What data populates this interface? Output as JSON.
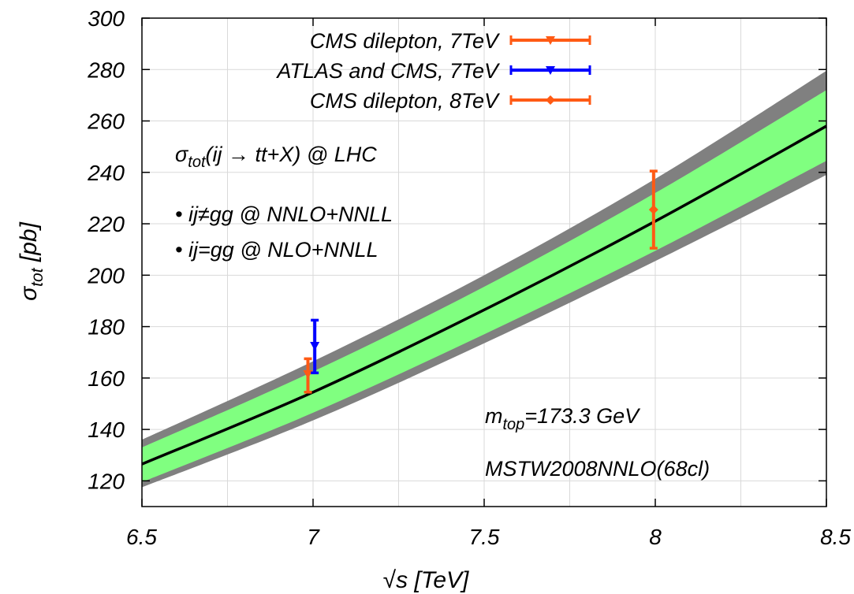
{
  "chart_data": {
    "type": "line",
    "xlabel": "√s [TeV]",
    "ylabel": "σtot [pb]",
    "xlim": [
      6.5,
      8.5
    ],
    "ylim": [
      110,
      300
    ],
    "xticks": [
      "6.5",
      "7",
      "7.5",
      "8",
      "8.5"
    ],
    "xtick_values": [
      6.5,
      7,
      7.5,
      8,
      8.5
    ],
    "yticks": [
      "120",
      "140",
      "160",
      "180",
      "200",
      "220",
      "240",
      "260",
      "280",
      "300"
    ],
    "ytick_values": [
      120,
      140,
      160,
      180,
      200,
      220,
      240,
      260,
      280,
      300
    ],
    "grid": true,
    "colors": {
      "outer_band": "#808080",
      "inner_band": "#80ff80",
      "central_line": "#000000",
      "cms_7tev": "#ff5a14",
      "atlas_cms_7tev": "#0000ff",
      "cms_8tev": "#ff5a14"
    },
    "theory": {
      "x": [
        6.5,
        7.0,
        7.5,
        8.0,
        8.5
      ],
      "central": [
        126.5,
        154.5,
        186.5,
        221.0,
        258.0
      ],
      "inner_lo": [
        119.5,
        146.5,
        177.0,
        209.5,
        244.5
      ],
      "inner_hi": [
        133.0,
        162.5,
        195.5,
        232.0,
        272.0
      ],
      "outer_lo": [
        117.5,
        143.5,
        173.5,
        205.5,
        239.0
      ],
      "outer_hi": [
        136.0,
        166.5,
        200.0,
        237.5,
        279.5
      ]
    },
    "series": [
      {
        "name": "CMS dilepton, 7TeV",
        "marker": "triangle-down",
        "x": 6.985,
        "y": 161.5,
        "ylo": 154.5,
        "yhi": 167.5
      },
      {
        "name": "ATLAS and CMS, 7TeV",
        "marker": "triangle-down",
        "x": 7.005,
        "y": 172.5,
        "ylo": 162.0,
        "yhi": 182.5
      },
      {
        "name": "CMS dilepton, 8TeV",
        "marker": "diamond",
        "x": 7.995,
        "y": 225.5,
        "ylo": 210.5,
        "yhi": 240.5
      }
    ],
    "legend_position": "top-right",
    "annotations": {
      "process_main": "σ",
      "process_sub": "tot",
      "process_rest": "(ij → tt+X) @ LHC",
      "bullet1": "• ij≠gg @ NNLO+NNLL",
      "bullet2": "• ij=gg @ NLO+NNLL",
      "mtop_main": "m",
      "mtop_sub": "top",
      "mtop_rest": "=173.3 GeV",
      "pdf": "MSTW2008NNLO(68cl)"
    }
  }
}
